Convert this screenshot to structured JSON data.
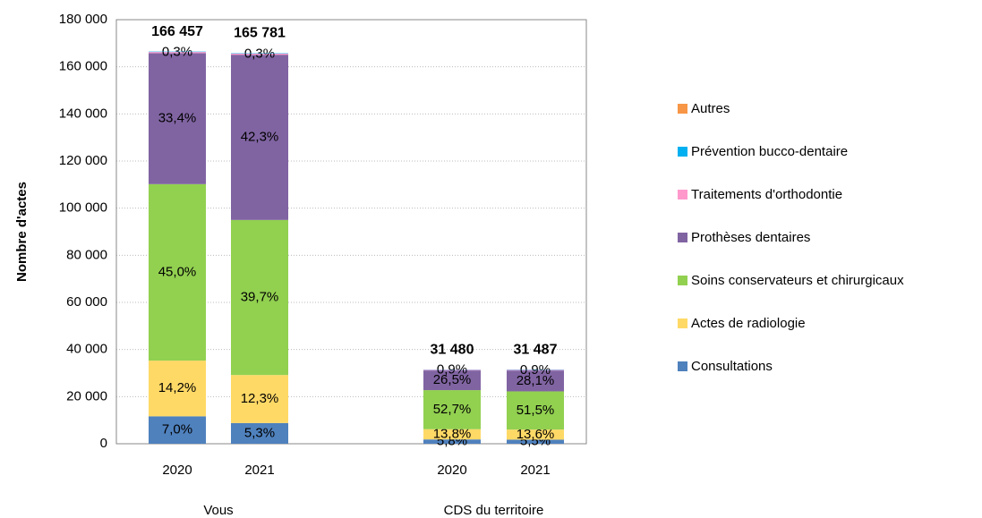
{
  "chart_data": {
    "type": "stacked_bar",
    "y_label": "Nombre d'actes",
    "categories": [
      "2020",
      "2021",
      "2020",
      "2021"
    ],
    "groups": [
      {
        "name": "Vous",
        "size": 2
      },
      {
        "name": "CDS du territoire",
        "size": 2
      }
    ],
    "totals": [
      166457,
      165781,
      31480,
      31487
    ],
    "total_labels": [
      "166 457",
      "165 781",
      "31 480",
      "31 487"
    ],
    "series": [
      {
        "name": "Consultations",
        "color": "#4f81bd",
        "values": [
          11652,
          8786,
          1826,
          1732
        ],
        "percentage_labels": [
          "7,0%",
          "5,3%",
          "5,8%",
          "5,5%"
        ]
      },
      {
        "name": "Actes de radiologie",
        "color": "#ffd966",
        "values": [
          23637,
          20391,
          4344,
          4282
        ],
        "percentage_labels": [
          "14,2%",
          "12,3%",
          "13,8%",
          "13,6%"
        ]
      },
      {
        "name": "Soins conservateurs et chirurgicaux",
        "color": "#92d050",
        "values": [
          74906,
          65815,
          16590,
          16216
        ],
        "percentage_labels": [
          "45,0%",
          "39,7%",
          "52,7%",
          "51,5%"
        ]
      },
      {
        "name": "Prothèses dentaires",
        "color": "#8064a2",
        "values": [
          55597,
          70125,
          8342,
          8848
        ],
        "percentage_labels": [
          "33,4%",
          "42,3%",
          "26,5%",
          "28,1%"
        ]
      },
      {
        "name": "Traitements d'orthodontie",
        "color": "#ff99cc",
        "values": [
          499,
          497,
          283,
          283
        ],
        "percentage_labels": [
          "0,3%",
          "0,3%",
          "0,9%",
          "0,9%"
        ]
      },
      {
        "name": "Prévention bucco-dentaire",
        "color": "#00b0f0",
        "values": [
          166,
          167,
          95,
          126
        ]
      },
      {
        "name": "Autres",
        "color": "#f79646",
        "values": [
          0,
          0,
          0,
          0
        ]
      }
    ],
    "ylim": [
      0,
      180000
    ],
    "yticks": [
      0,
      {
        "value": 20000,
        "label": "20 000"
      },
      {
        "value": 40000,
        "label": "40 000"
      },
      {
        "value": 60000,
        "label": "60 000"
      },
      {
        "value": 80000,
        "label": "80 000"
      },
      {
        "value": 100000,
        "label": "100 000"
      },
      {
        "value": 120000,
        "label": "120 000"
      },
      {
        "value": 140000,
        "label": "140 000"
      },
      {
        "value": 160000,
        "label": "160 000"
      },
      {
        "value": 180000,
        "label": "180 000"
      }
    ],
    "grid": true,
    "legend": "right"
  }
}
